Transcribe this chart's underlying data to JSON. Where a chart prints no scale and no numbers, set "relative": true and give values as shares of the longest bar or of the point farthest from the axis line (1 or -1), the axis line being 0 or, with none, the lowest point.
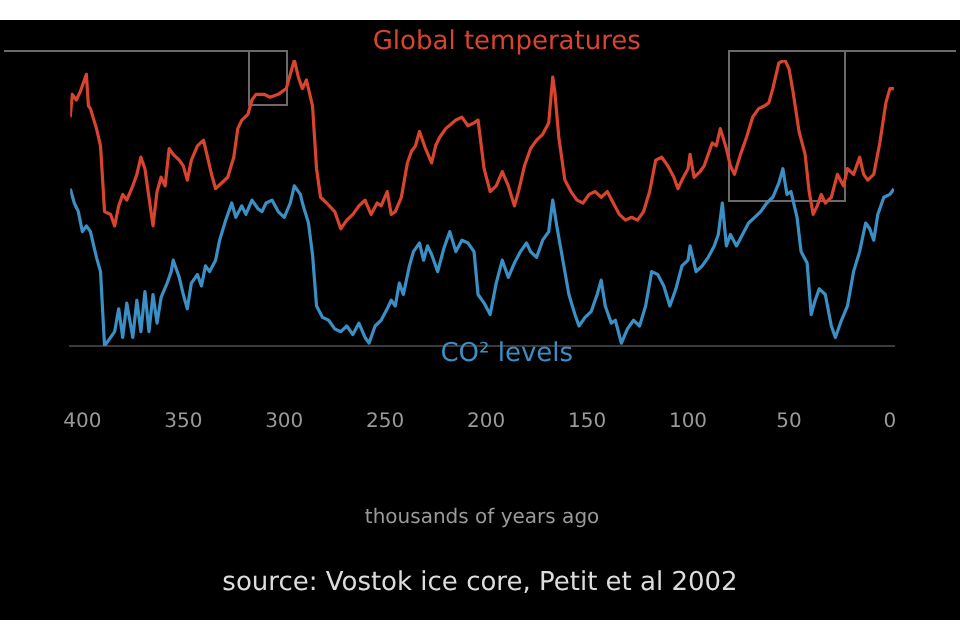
{
  "chart_data": {
    "type": "line",
    "relative": true,
    "xlabel": "thousands of years ago",
    "xlim": [
      406,
      -2
    ],
    "xticks": [
      400,
      350,
      300,
      250,
      200,
      150,
      100,
      50,
      0
    ],
    "annotations": [
      "source: Vostok ice core, Petit et al 2002"
    ],
    "series": [
      {
        "name": "Global temperatures",
        "color": "#d9442e",
        "x": [
          406,
          405,
          403,
          401,
          398,
          397,
          396,
          393,
          391,
          389,
          386,
          384,
          382,
          380,
          378,
          375,
          373,
          371,
          369,
          367,
          365,
          363,
          361,
          359,
          357,
          355,
          352,
          350,
          348,
          346,
          343,
          340,
          338,
          336,
          334,
          331,
          328,
          325,
          323,
          321,
          318,
          316,
          314,
          310,
          307,
          303,
          299,
          295,
          293,
          291,
          289,
          286,
          284,
          282,
          279,
          275,
          272,
          269,
          266,
          263,
          260,
          257,
          254,
          252,
          249,
          247,
          245,
          242,
          239,
          237,
          235,
          233,
          230,
          227,
          225,
          223,
          220,
          215,
          212,
          209,
          206,
          204,
          201,
          198,
          195,
          192,
          189,
          186,
          184,
          181,
          178,
          175,
          172,
          169,
          167,
          166,
          164,
          161,
          158,
          155,
          152,
          149,
          146,
          143,
          140,
          137,
          134,
          131,
          128,
          125,
          122,
          119,
          116,
          113,
          110,
          107,
          105,
          103,
          100,
          99,
          97,
          94,
          92,
          88,
          86,
          84,
          81,
          79,
          77,
          74,
          71,
          68,
          65,
          62,
          60,
          58,
          55,
          52,
          50,
          48,
          45,
          42,
          40,
          38,
          36,
          34,
          32,
          29,
          26,
          23,
          21,
          18,
          15,
          13,
          11,
          8,
          5,
          2,
          0,
          -2
        ],
        "values": [
          0.8,
          0.88,
          0.86,
          0.89,
          0.95,
          0.84,
          0.83,
          0.76,
          0.7,
          0.47,
          0.46,
          0.42,
          0.49,
          0.53,
          0.51,
          0.56,
          0.6,
          0.66,
          0.62,
          0.52,
          0.42,
          0.54,
          0.59,
          0.56,
          0.69,
          0.67,
          0.65,
          0.63,
          0.58,
          0.65,
          0.7,
          0.72,
          0.66,
          0.6,
          0.55,
          0.57,
          0.59,
          0.66,
          0.76,
          0.79,
          0.81,
          0.86,
          0.88,
          0.88,
          0.87,
          0.88,
          0.9,
          1.0,
          0.94,
          0.9,
          0.93,
          0.84,
          0.62,
          0.52,
          0.5,
          0.47,
          0.41,
          0.44,
          0.46,
          0.49,
          0.51,
          0.46,
          0.5,
          0.49,
          0.54,
          0.46,
          0.47,
          0.52,
          0.64,
          0.68,
          0.7,
          0.75,
          0.69,
          0.64,
          0.7,
          0.73,
          0.76,
          0.79,
          0.8,
          0.77,
          0.78,
          0.79,
          0.62,
          0.54,
          0.56,
          0.61,
          0.56,
          0.49,
          0.54,
          0.63,
          0.69,
          0.72,
          0.74,
          0.78,
          0.94,
          0.89,
          0.73,
          0.58,
          0.54,
          0.51,
          0.5,
          0.53,
          0.54,
          0.52,
          0.54,
          0.5,
          0.46,
          0.44,
          0.45,
          0.44,
          0.47,
          0.54,
          0.65,
          0.66,
          0.63,
          0.59,
          0.55,
          0.58,
          0.62,
          0.67,
          0.59,
          0.61,
          0.63,
          0.71,
          0.7,
          0.76,
          0.69,
          0.63,
          0.6,
          0.67,
          0.73,
          0.8,
          0.83,
          0.84,
          0.85,
          0.9,
          0.99,
          1.0,
          0.97,
          0.89,
          0.75,
          0.67,
          0.54,
          0.46,
          0.49,
          0.53,
          0.5,
          0.52,
          0.6,
          0.56,
          0.62,
          0.6,
          0.66,
          0.6,
          0.58,
          0.6,
          0.71,
          0.85,
          0.9,
          0.9
        ]
      },
      {
        "name": "CO² levels",
        "color": "#3a8fc4",
        "x": [
          406,
          404,
          402,
          400,
          398,
          396,
          393,
          391,
          389,
          386,
          384,
          382,
          380,
          378,
          375,
          373,
          371,
          369,
          367,
          365,
          363,
          361,
          358,
          356,
          355,
          352,
          350,
          348,
          346,
          343,
          341,
          339,
          337,
          334,
          332,
          329,
          326,
          324,
          321,
          319,
          316,
          313,
          311,
          309,
          306,
          303,
          300,
          297,
          295,
          292,
          291,
          288,
          286,
          284,
          281,
          278,
          275,
          272,
          269,
          266,
          263,
          260,
          258,
          255,
          252,
          249,
          247,
          245,
          243,
          241,
          238,
          236,
          233,
          231,
          229,
          227,
          224,
          221,
          218,
          215,
          212,
          209,
          206,
          204,
          201,
          198,
          195,
          192,
          189,
          186,
          183,
          180,
          178,
          175,
          172,
          169,
          167,
          165,
          162,
          159,
          156,
          154,
          151,
          148,
          145,
          143,
          141,
          138,
          136,
          133,
          130,
          127,
          124,
          121,
          118,
          115,
          112,
          109,
          106,
          103,
          100,
          99,
          96,
          93,
          90,
          87,
          85,
          83,
          81,
          79,
          76,
          73,
          70,
          67,
          64,
          61,
          58,
          55,
          53,
          51,
          49,
          46,
          44,
          41,
          39,
          37,
          35,
          32,
          29,
          27,
          24,
          21,
          18,
          15,
          12,
          10,
          8,
          6,
          3,
          0,
          -2
        ],
        "values": [
          0.55,
          0.5,
          0.47,
          0.4,
          0.42,
          0.4,
          0.31,
          0.26,
          0.0,
          0.03,
          0.05,
          0.13,
          0.03,
          0.15,
          0.03,
          0.16,
          0.05,
          0.19,
          0.05,
          0.18,
          0.08,
          0.17,
          0.22,
          0.26,
          0.3,
          0.24,
          0.18,
          0.13,
          0.22,
          0.25,
          0.21,
          0.28,
          0.26,
          0.3,
          0.37,
          0.44,
          0.5,
          0.45,
          0.49,
          0.46,
          0.51,
          0.48,
          0.47,
          0.5,
          0.51,
          0.47,
          0.45,
          0.5,
          0.56,
          0.53,
          0.5,
          0.43,
          0.32,
          0.14,
          0.1,
          0.09,
          0.06,
          0.05,
          0.07,
          0.04,
          0.08,
          0.03,
          0.01,
          0.07,
          0.09,
          0.13,
          0.16,
          0.14,
          0.22,
          0.18,
          0.28,
          0.33,
          0.36,
          0.3,
          0.35,
          0.32,
          0.26,
          0.34,
          0.4,
          0.33,
          0.37,
          0.36,
          0.33,
          0.18,
          0.15,
          0.11,
          0.22,
          0.3,
          0.24,
          0.29,
          0.33,
          0.36,
          0.33,
          0.31,
          0.37,
          0.4,
          0.51,
          0.42,
          0.3,
          0.18,
          0.11,
          0.07,
          0.1,
          0.12,
          0.18,
          0.23,
          0.14,
          0.08,
          0.09,
          0.01,
          0.06,
          0.09,
          0.07,
          0.14,
          0.26,
          0.25,
          0.21,
          0.14,
          0.2,
          0.28,
          0.3,
          0.35,
          0.26,
          0.28,
          0.31,
          0.35,
          0.39,
          0.5,
          0.35,
          0.39,
          0.35,
          0.39,
          0.43,
          0.45,
          0.47,
          0.5,
          0.52,
          0.57,
          0.62,
          0.53,
          0.54,
          0.45,
          0.33,
          0.29,
          0.11,
          0.16,
          0.2,
          0.18,
          0.07,
          0.03,
          0.09,
          0.14,
          0.26,
          0.33,
          0.43,
          0.41,
          0.37,
          0.46,
          0.52,
          0.53,
          0.55
        ]
      }
    ]
  }
}
